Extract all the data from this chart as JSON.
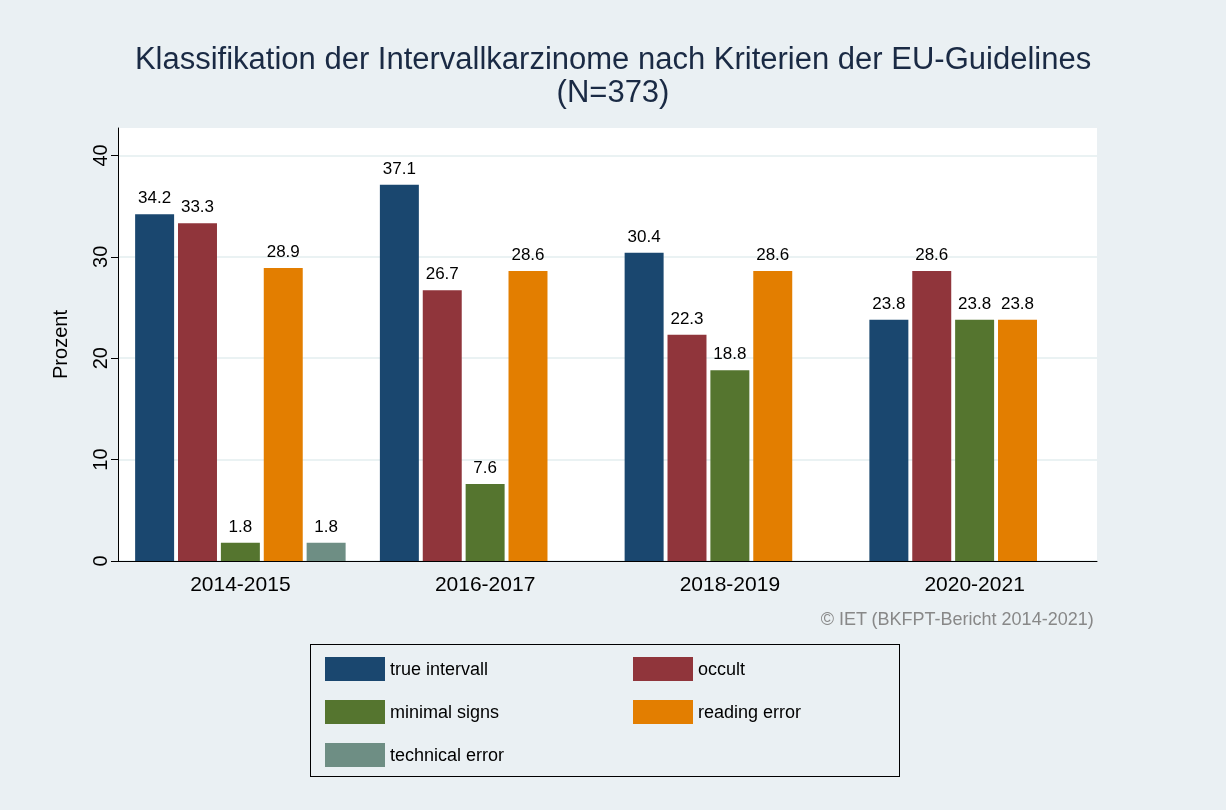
{
  "chart_data": {
    "type": "bar",
    "title": "Klassifikation der Intervallkarzinome nach Kriterien der EU-Guidelines",
    "subtitle": "(N=373)",
    "ylabel": "Prozent",
    "categories": [
      "2014-2015",
      "2016-2017",
      "2018-2019",
      "2020-2021"
    ],
    "series": [
      {
        "name": "true intervall",
        "color": "#1a476f",
        "values": [
          34.2,
          37.1,
          30.4,
          23.8
        ]
      },
      {
        "name": "occult",
        "color": "#90353b",
        "values": [
          33.3,
          26.7,
          22.3,
          28.6
        ]
      },
      {
        "name": "minimal signs",
        "color": "#55752f",
        "values": [
          1.8,
          7.6,
          18.8,
          23.8
        ]
      },
      {
        "name": "reading error",
        "color": "#e37e00",
        "values": [
          28.9,
          28.6,
          28.6,
          23.8
        ]
      },
      {
        "name": "technical error",
        "color": "#6e8e84",
        "values": [
          1.8,
          null,
          null,
          null
        ]
      }
    ],
    "ylim": [
      0,
      42.7
    ],
    "yticks": [
      0,
      10,
      20,
      30,
      40
    ],
    "grid": "y",
    "legend": "bottom",
    "data_labels": true,
    "annotations": [
      "© IET (BKFPT-Bericht 2014-2021)"
    ]
  }
}
